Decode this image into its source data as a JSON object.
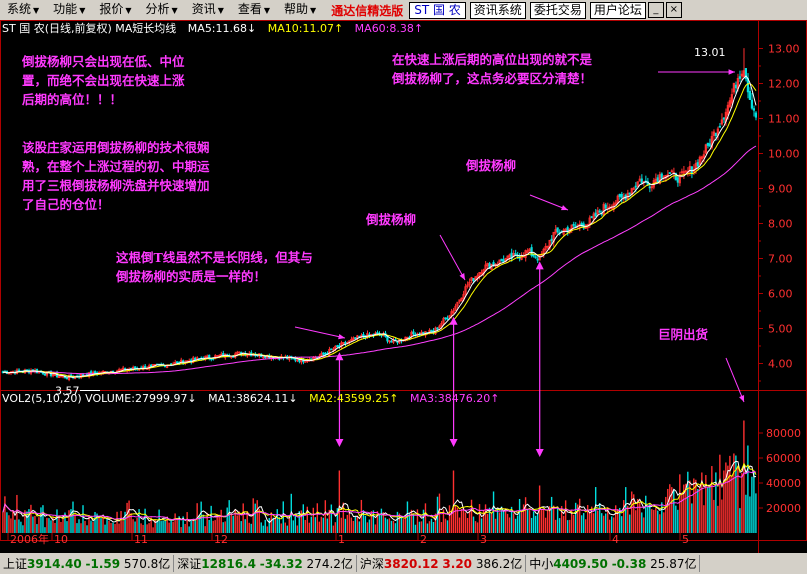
{
  "menu": [
    {
      "label": "系统"
    },
    {
      "label": "功能"
    },
    {
      "label": "报价"
    },
    {
      "label": "分析"
    },
    {
      "label": "资讯"
    },
    {
      "label": "查看"
    },
    {
      "label": "帮助"
    }
  ],
  "brand": "通达信精选版",
  "stock_box": "ST 国 农",
  "toolbar_buttons": [
    "资讯系统",
    "委托交易",
    "用户论坛"
  ],
  "price_header": {
    "title": "ST 国 农(日线,前复权) MA短长均线",
    "ma5": "MA5:11.68↓",
    "ma10": "MA10:11.07↑",
    "ma60": "MA60:8.38↑"
  },
  "vol_header": {
    "title": "VOL2(5,10,20) VOLUME:27999.97↓",
    "ma1": "MA1:38624.11↓",
    "ma2": "MA2:43599.25↑",
    "ma3": "MA3:38476.20↑"
  },
  "price_axis": [
    "13.00",
    "12.00",
    "11.00",
    "10.00",
    "9.00",
    "8.00",
    "7.00",
    "6.00",
    "5.00",
    "4.00"
  ],
  "vol_axis": [
    "80000",
    "60000",
    "40000",
    "20000"
  ],
  "time_axis": [
    "2006年",
    "10",
    "11",
    "12",
    "1",
    "2",
    "3",
    "4",
    "5"
  ],
  "labels": {
    "high": "13.01",
    "low": "3.57",
    "period": "日线"
  },
  "notes": {
    "n1": "倒拔杨柳只会出现在低、中位\n置，而绝不会出现在快速上涨\n后期的高位！！！",
    "n2": "该股庄家运用倒拔杨柳的技术很娴\n熟，在整个上涨过程的初、中期运\n用了三根倒拔杨柳洗盘并快速增加\n了自己的仓位！",
    "n3": "在快速上涨后期的高位出现的就不是\n倒拔杨柳了，这点务必要区分清楚！",
    "n4": "倒拔杨柳",
    "n5": "倒拔杨柳",
    "n6": "这根倒T线虽然不是长阴线，但其与\n倒拔杨柳的实质是一样的！",
    "n7": "巨阴出货"
  },
  "status": {
    "sh_label": "上证",
    "sh_val": "3914.40",
    "sh_chg": "-1.59",
    "sh_amt": "570.8亿",
    "sz_label": "深证",
    "sz_val": "12816.4",
    "sz_chg": "-34.32",
    "sz_amt": "274.2亿",
    "hs_label": "沪深",
    "hs_val": "3820.12",
    "hs_chg": "3.20",
    "hs_amt": "386.2亿",
    "zx_label": "中小",
    "zx_val": "4409.50",
    "zx_chg": "-0.38",
    "zx_amt": "25.87亿"
  },
  "colors": {
    "bull": "#ff3030",
    "bear": "#00e0e0",
    "ma5": "#ffffff",
    "ma10": "#ffff00",
    "ma60": "#ff40ff",
    "note": "#ff3aff"
  },
  "chart_data": {
    "type": "candlestick",
    "ylim": [
      3.3,
      13.3
    ],
    "vol_ylim": [
      0,
      100000
    ],
    "swing_points": [
      {
        "i": 0,
        "p": 3.75
      },
      {
        "i": 15,
        "p": 3.8
      },
      {
        "i": 32,
        "p": 3.6
      },
      {
        "i": 50,
        "p": 3.75
      },
      {
        "i": 80,
        "p": 3.95
      },
      {
        "i": 100,
        "p": 4.15
      },
      {
        "i": 120,
        "p": 4.3
      },
      {
        "i": 150,
        "p": 4.1
      },
      {
        "i": 158,
        "p": 4.2
      },
      {
        "i": 168,
        "p": 4.5
      },
      {
        "i": 178,
        "p": 4.75
      },
      {
        "i": 188,
        "p": 4.85
      },
      {
        "i": 195,
        "p": 4.6
      },
      {
        "i": 205,
        "p": 4.85
      },
      {
        "i": 215,
        "p": 4.9
      },
      {
        "i": 225,
        "p": 5.55
      },
      {
        "i": 232,
        "p": 6.25
      },
      {
        "i": 240,
        "p": 6.75
      },
      {
        "i": 255,
        "p": 7.05
      },
      {
        "i": 262,
        "p": 7.2
      },
      {
        "i": 268,
        "p": 7.0
      },
      {
        "i": 275,
        "p": 7.7
      },
      {
        "i": 285,
        "p": 7.9
      },
      {
        "i": 292,
        "p": 8.0
      },
      {
        "i": 300,
        "p": 8.45
      },
      {
        "i": 310,
        "p": 8.75
      },
      {
        "i": 318,
        "p": 9.25
      },
      {
        "i": 322,
        "p": 9.1
      },
      {
        "i": 330,
        "p": 9.45
      },
      {
        "i": 338,
        "p": 9.3
      },
      {
        "i": 345,
        "p": 9.6
      },
      {
        "i": 352,
        "p": 10.2
      },
      {
        "i": 358,
        "p": 10.9
      },
      {
        "i": 363,
        "p": 11.5
      },
      {
        "i": 367,
        "p": 12.2
      },
      {
        "i": 370,
        "p": 12.5
      },
      {
        "i": 373,
        "p": 11.6
      },
      {
        "i": 376,
        "p": 11.1
      }
    ],
    "count": 377,
    "special": [
      {
        "i": 352,
        "vol": 50000,
        "label": "倒拔杨柳"
      },
      {
        "i": 482,
        "vol": 50000,
        "label": "倒拔杨柳"
      },
      {
        "i": 574,
        "vol": 38000,
        "label": "倒拔杨柳"
      },
      {
        "i": 744,
        "vol": 90000,
        "label": "巨阴出货"
      }
    ],
    "high": 13.01,
    "low": 3.57
  }
}
